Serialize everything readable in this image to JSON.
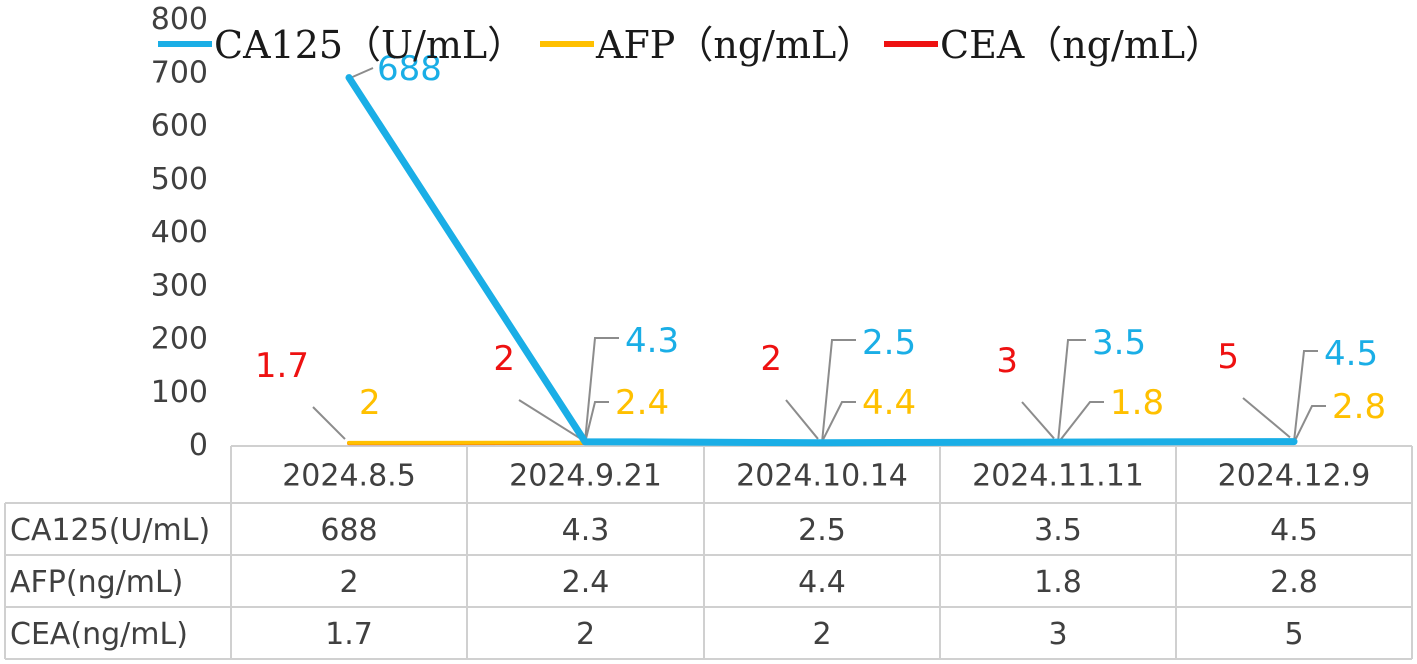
{
  "chart_data": {
    "type": "line",
    "categories": [
      "2024.8.5",
      "2024.9.21",
      "2024.10.14",
      "2024.11.11",
      "2024.12.9"
    ],
    "ylim": [
      0,
      800
    ],
    "yticks": [
      "0",
      "100",
      "200",
      "300",
      "400",
      "500",
      "600",
      "700",
      "800"
    ],
    "legend_position": "top",
    "grid": false,
    "series": [
      {
        "name": "CA125（U/mL）",
        "table_name": "CA125(U/mL)",
        "color": "#1aaee6",
        "values": [
          688,
          4.3,
          2.5,
          3.5,
          4.5
        ],
        "labels": [
          "688",
          "4.3",
          "2.5",
          "3.5",
          "4.5"
        ]
      },
      {
        "name": "AFP（ng/mL）",
        "table_name": "AFP(ng/mL)",
        "color": "#ffc000",
        "values": [
          2,
          2.4,
          4.4,
          1.8,
          2.8
        ],
        "labels": [
          "2",
          "2.4",
          "4.4",
          "1.8",
          "2.8"
        ]
      },
      {
        "name": "CEA（ng/mL）",
        "table_name": "CEA(ng/mL)",
        "color": "#ee1111",
        "values": [
          1.7,
          2,
          2,
          3,
          5
        ],
        "labels": [
          "1.7",
          "2",
          "2",
          "3",
          "5"
        ]
      }
    ]
  }
}
